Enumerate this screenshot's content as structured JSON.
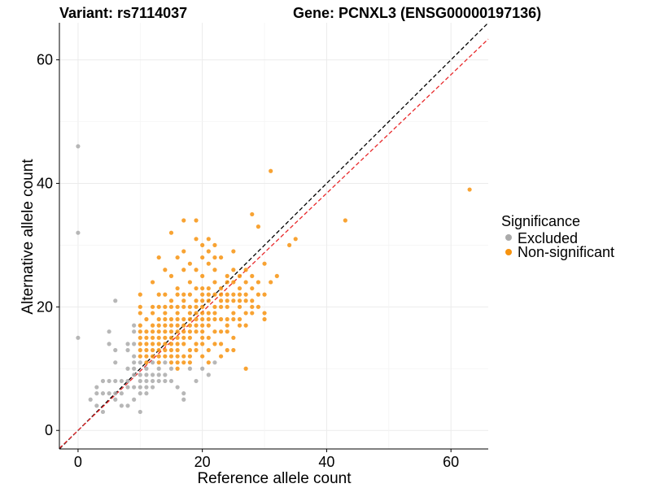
{
  "chart_data": {
    "type": "scatter",
    "title_left": "Variant: rs7114037",
    "title_right": "Gene: PCNXL3 (ENSG00000197136)",
    "xlabel": "Reference allele count",
    "ylabel": "Alternative allele count",
    "xlim": [
      -3,
      66
    ],
    "ylim": [
      -3,
      66
    ],
    "x_ticks": [
      0,
      20,
      40,
      60
    ],
    "y_ticks": [
      0,
      20,
      40,
      60
    ],
    "grid": true,
    "legend": {
      "title": "Significance",
      "position": "right",
      "entries": [
        {
          "label": "Excluded",
          "color": "#aaaaaa"
        },
        {
          "label": "Non-significant",
          "color": "#f7930f"
        }
      ]
    },
    "reference_lines": [
      {
        "style": "dashed",
        "color": "#000000",
        "slope": 1.0,
        "intercept": 0
      },
      {
        "style": "dashed",
        "color": "#e8282a",
        "slope": 0.96,
        "intercept": 0
      }
    ],
    "series": [
      {
        "name": "Excluded",
        "color": "#aaaaaa",
        "points": [
          [
            0,
            46
          ],
          [
            0,
            32
          ],
          [
            0,
            15
          ],
          [
            2,
            5
          ],
          [
            3,
            7
          ],
          [
            3,
            6
          ],
          [
            3,
            4
          ],
          [
            4,
            3
          ],
          [
            4,
            6
          ],
          [
            4,
            8
          ],
          [
            5,
            8
          ],
          [
            5,
            6
          ],
          [
            5,
            14
          ],
          [
            5,
            16
          ],
          [
            6,
            21
          ],
          [
            6,
            13
          ],
          [
            6,
            11
          ],
          [
            6,
            8
          ],
          [
            6,
            6
          ],
          [
            6,
            5
          ],
          [
            7,
            8
          ],
          [
            7,
            6
          ],
          [
            7,
            4
          ],
          [
            8,
            10
          ],
          [
            8,
            8
          ],
          [
            8,
            7
          ],
          [
            8,
            13
          ],
          [
            8,
            14
          ],
          [
            9,
            17
          ],
          [
            9,
            16
          ],
          [
            9,
            14
          ],
          [
            9,
            12
          ],
          [
            9,
            10
          ],
          [
            9,
            9
          ],
          [
            9,
            7
          ],
          [
            9,
            5
          ],
          [
            10,
            11
          ],
          [
            10,
            9
          ],
          [
            10,
            8
          ],
          [
            10,
            7
          ],
          [
            10,
            3
          ],
          [
            11,
            10
          ],
          [
            11,
            9
          ],
          [
            11,
            8
          ],
          [
            11,
            7
          ],
          [
            12,
            9
          ],
          [
            12,
            8
          ],
          [
            13,
            9
          ],
          [
            13,
            8
          ],
          [
            14,
            9
          ],
          [
            14,
            8
          ],
          [
            15,
            8
          ],
          [
            16,
            7
          ],
          [
            17,
            5
          ],
          [
            17,
            6
          ],
          [
            18,
            10
          ],
          [
            19,
            8
          ],
          [
            20,
            10
          ],
          [
            21,
            9
          ],
          [
            22,
            11
          ],
          [
            12,
            11
          ],
          [
            13,
            10
          ],
          [
            14,
            11
          ],
          [
            15,
            10
          ],
          [
            10,
            6
          ],
          [
            12,
            7
          ],
          [
            11,
            6
          ],
          [
            8,
            4
          ],
          [
            9,
            11
          ]
        ]
      },
      {
        "name": "Non-significant",
        "color": "#f7930f",
        "points": [
          [
            10,
            22
          ],
          [
            10,
            20
          ],
          [
            10,
            19
          ],
          [
            10,
            17
          ],
          [
            10,
            16
          ],
          [
            10,
            15
          ],
          [
            10,
            14
          ],
          [
            10,
            13
          ],
          [
            10,
            12
          ],
          [
            11,
            18
          ],
          [
            11,
            16
          ],
          [
            11,
            15
          ],
          [
            11,
            14
          ],
          [
            11,
            13
          ],
          [
            11,
            12
          ],
          [
            11,
            11
          ],
          [
            12,
            24
          ],
          [
            12,
            20
          ],
          [
            12,
            19
          ],
          [
            12,
            17
          ],
          [
            12,
            16
          ],
          [
            12,
            15
          ],
          [
            12,
            14
          ],
          [
            12,
            13
          ],
          [
            12,
            12
          ],
          [
            13,
            28
          ],
          [
            13,
            22
          ],
          [
            13,
            20
          ],
          [
            13,
            18
          ],
          [
            13,
            17
          ],
          [
            13,
            16
          ],
          [
            13,
            15
          ],
          [
            13,
            14
          ],
          [
            13,
            13
          ],
          [
            13,
            12
          ],
          [
            13,
            11
          ],
          [
            14,
            26
          ],
          [
            14,
            22
          ],
          [
            14,
            20
          ],
          [
            14,
            19
          ],
          [
            14,
            18
          ],
          [
            14,
            17
          ],
          [
            14,
            16
          ],
          [
            14,
            15
          ],
          [
            14,
            14
          ],
          [
            14,
            13
          ],
          [
            14,
            12
          ],
          [
            15,
            32
          ],
          [
            15,
            25
          ],
          [
            15,
            21
          ],
          [
            15,
            20
          ],
          [
            15,
            18
          ],
          [
            15,
            17
          ],
          [
            15,
            16
          ],
          [
            15,
            15
          ],
          [
            15,
            14
          ],
          [
            15,
            13
          ],
          [
            15,
            12
          ],
          [
            15,
            11
          ],
          [
            16,
            28
          ],
          [
            16,
            23
          ],
          [
            16,
            22
          ],
          [
            16,
            20
          ],
          [
            16,
            19
          ],
          [
            16,
            18
          ],
          [
            16,
            17
          ],
          [
            16,
            16
          ],
          [
            16,
            15
          ],
          [
            16,
            14
          ],
          [
            16,
            13
          ],
          [
            16,
            12
          ],
          [
            16,
            10
          ],
          [
            17,
            34
          ],
          [
            17,
            29
          ],
          [
            17,
            26
          ],
          [
            17,
            22
          ],
          [
            17,
            21
          ],
          [
            17,
            20
          ],
          [
            17,
            18
          ],
          [
            17,
            17
          ],
          [
            17,
            16
          ],
          [
            17,
            15
          ],
          [
            17,
            14
          ],
          [
            17,
            12
          ],
          [
            17,
            11
          ],
          [
            18,
            27
          ],
          [
            18,
            24
          ],
          [
            18,
            22
          ],
          [
            18,
            20
          ],
          [
            18,
            19
          ],
          [
            18,
            18
          ],
          [
            18,
            17
          ],
          [
            18,
            16
          ],
          [
            18,
            15
          ],
          [
            18,
            13
          ],
          [
            18,
            12
          ],
          [
            19,
            34
          ],
          [
            19,
            31
          ],
          [
            19,
            26
          ],
          [
            19,
            23
          ],
          [
            19,
            21
          ],
          [
            19,
            20
          ],
          [
            19,
            19
          ],
          [
            19,
            18
          ],
          [
            19,
            17
          ],
          [
            19,
            16
          ],
          [
            19,
            14
          ],
          [
            19,
            13
          ],
          [
            20,
            30
          ],
          [
            20,
            28
          ],
          [
            20,
            25
          ],
          [
            20,
            23
          ],
          [
            20,
            22
          ],
          [
            20,
            21
          ],
          [
            20,
            20
          ],
          [
            20,
            19
          ],
          [
            20,
            18
          ],
          [
            20,
            17
          ],
          [
            20,
            16
          ],
          [
            20,
            15
          ],
          [
            20,
            14
          ],
          [
            20,
            12
          ],
          [
            21,
            31
          ],
          [
            21,
            29
          ],
          [
            21,
            27
          ],
          [
            21,
            23
          ],
          [
            21,
            22
          ],
          [
            21,
            21
          ],
          [
            21,
            19
          ],
          [
            21,
            18
          ],
          [
            21,
            17
          ],
          [
            21,
            15
          ],
          [
            21,
            13
          ],
          [
            21,
            11
          ],
          [
            22,
            30
          ],
          [
            22,
            28
          ],
          [
            22,
            26
          ],
          [
            22,
            24
          ],
          [
            22,
            22
          ],
          [
            22,
            20
          ],
          [
            22,
            19
          ],
          [
            22,
            18
          ],
          [
            22,
            16
          ],
          [
            22,
            14
          ],
          [
            23,
            28
          ],
          [
            23,
            23
          ],
          [
            23,
            22
          ],
          [
            23,
            21
          ],
          [
            23,
            20
          ],
          [
            23,
            18
          ],
          [
            23,
            16
          ],
          [
            23,
            14
          ],
          [
            24,
            25
          ],
          [
            24,
            24
          ],
          [
            24,
            22
          ],
          [
            24,
            21
          ],
          [
            24,
            20
          ],
          [
            24,
            18
          ],
          [
            24,
            17
          ],
          [
            24,
            16
          ],
          [
            25,
            29
          ],
          [
            25,
            26
          ],
          [
            25,
            24
          ],
          [
            25,
            22
          ],
          [
            25,
            21
          ],
          [
            25,
            19
          ],
          [
            25,
            18
          ],
          [
            25,
            15
          ],
          [
            25,
            13
          ],
          [
            26,
            25
          ],
          [
            26,
            23
          ],
          [
            26,
            22
          ],
          [
            26,
            21
          ],
          [
            26,
            20
          ],
          [
            26,
            18
          ],
          [
            26,
            17
          ],
          [
            27,
            26
          ],
          [
            27,
            24
          ],
          [
            27,
            22
          ],
          [
            27,
            21
          ],
          [
            27,
            19
          ],
          [
            27,
            17
          ],
          [
            27,
            10
          ],
          [
            28,
            35
          ],
          [
            28,
            25
          ],
          [
            28,
            23
          ],
          [
            28,
            21
          ],
          [
            28,
            20
          ],
          [
            28,
            19
          ],
          [
            29,
            33
          ],
          [
            29,
            24
          ],
          [
            29,
            22
          ],
          [
            29,
            20
          ],
          [
            30,
            27
          ],
          [
            30,
            22
          ],
          [
            30,
            19
          ],
          [
            30,
            18
          ],
          [
            31,
            42
          ],
          [
            31,
            24
          ],
          [
            32,
            25
          ],
          [
            34,
            30
          ],
          [
            35,
            31
          ],
          [
            43,
            34
          ],
          [
            63,
            39
          ],
          [
            23,
            12
          ],
          [
            24,
            13
          ],
          [
            16,
            11
          ],
          [
            18,
            11
          ]
        ]
      }
    ]
  }
}
